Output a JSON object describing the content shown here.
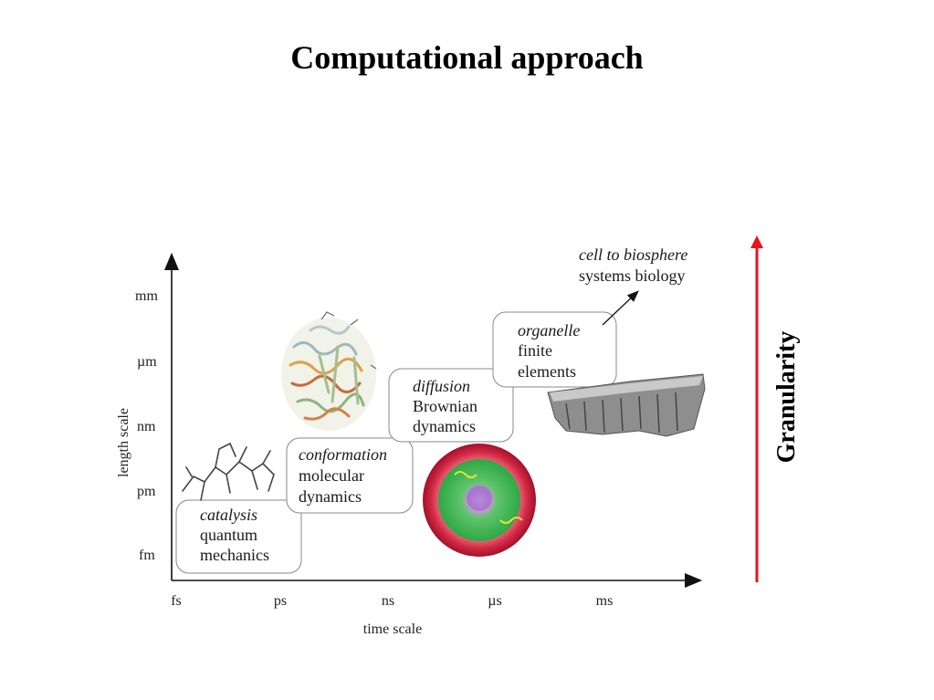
{
  "title": "Computational approach",
  "axes": {
    "y_label": "length scale",
    "x_label": "time scale",
    "y_ticks": [
      "mm",
      "µm",
      "nm",
      "pm",
      "fm"
    ],
    "x_ticks": [
      "fs",
      "ps",
      "ns",
      "µs",
      "ms"
    ]
  },
  "boxes": [
    {
      "id": "catalysis",
      "italic": "catalysis",
      "line1": "quantum",
      "line2": "mechanics"
    },
    {
      "id": "conformation",
      "italic": "conformation",
      "line1": "molecular",
      "line2": "dynamics"
    },
    {
      "id": "diffusion",
      "italic": "diffusion",
      "line1": "Brownian",
      "line2": "dynamics"
    },
    {
      "id": "organelle",
      "italic": "organelle",
      "line1": "finite",
      "line2": "elements"
    }
  ],
  "outer_label": {
    "italic": "cell to biosphere",
    "line1": "systems biology"
  },
  "granularity": {
    "label": "Granularity",
    "arrow_color": "#e8141c"
  },
  "colors": {
    "red_ring": "#b8132a",
    "green_core": "#33b14a",
    "gray_struct": "#6b6b6b"
  }
}
